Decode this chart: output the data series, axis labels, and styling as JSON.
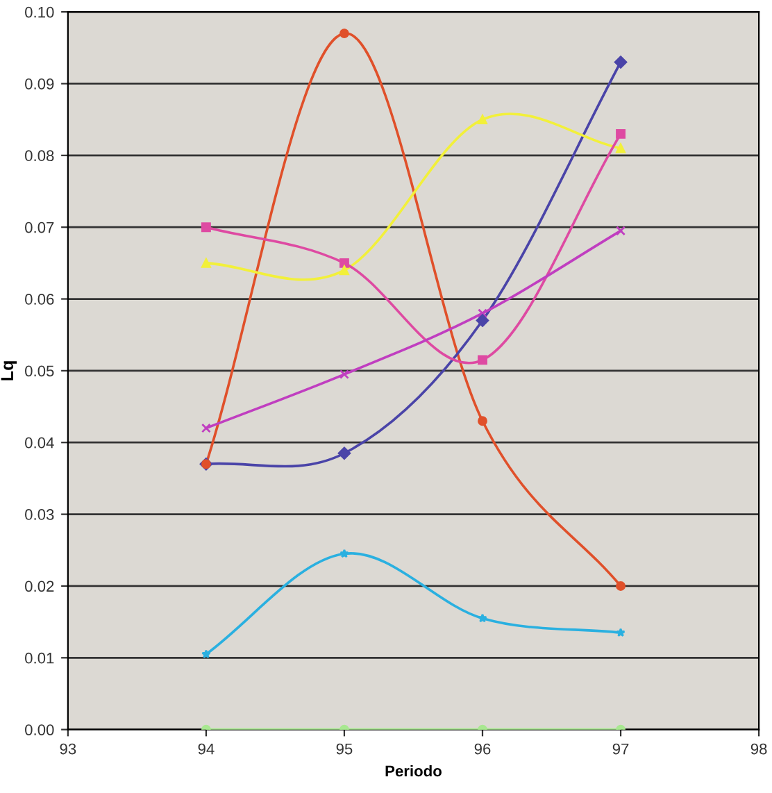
{
  "chart_data": {
    "type": "line",
    "xlabel": "Periodo",
    "ylabel": "Lq",
    "x": [
      94,
      95,
      96,
      97
    ],
    "series": [
      {
        "color": "#e0502a",
        "marker": "circle",
        "values": [
          0.037,
          0.097,
          0.043,
          0.02
        ]
      },
      {
        "color": "#4a44a8",
        "marker": "diamond",
        "values": [
          0.037,
          0.0385,
          0.057,
          0.093
        ]
      },
      {
        "color": "#f2f03a",
        "marker": "triangle",
        "values": [
          0.065,
          0.064,
          0.085,
          0.081
        ]
      },
      {
        "color": "#de4aa2",
        "marker": "square",
        "values": [
          0.07,
          0.065,
          0.0515,
          0.083
        ]
      },
      {
        "color": "#c03ec0",
        "marker": "cross",
        "values": [
          0.042,
          0.0495,
          0.058,
          0.0695
        ]
      },
      {
        "color": "#2ab0e0",
        "marker": "star",
        "values": [
          0.0105,
          0.0245,
          0.0155,
          0.0135
        ]
      },
      {
        "color": "#a8e890",
        "marker": "circle",
        "values": [
          0,
          0,
          0,
          0
        ]
      }
    ],
    "xlim": [
      93,
      98
    ],
    "xticks": [
      93,
      94,
      95,
      96,
      97,
      98
    ],
    "ylim": [
      0,
      0.1
    ],
    "yticks": [
      {
        "value": 0,
        "label": "0.00"
      },
      {
        "value": 0.01,
        "label": "0.01"
      },
      {
        "value": 0.02,
        "label": "0.02"
      },
      {
        "value": 0.03,
        "label": "0.03"
      },
      {
        "value": 0.04,
        "label": "0.04"
      },
      {
        "value": 0.05,
        "label": "0.05"
      },
      {
        "value": 0.06,
        "label": "0.06"
      },
      {
        "value": 0.07,
        "label": "0.07"
      },
      {
        "value": 0.08,
        "label": "0.08"
      },
      {
        "value": 0.09,
        "label": "0.09"
      },
      {
        "value": 0.1,
        "label": "0.10"
      }
    ],
    "grid": "y",
    "line_style": "solid"
  }
}
